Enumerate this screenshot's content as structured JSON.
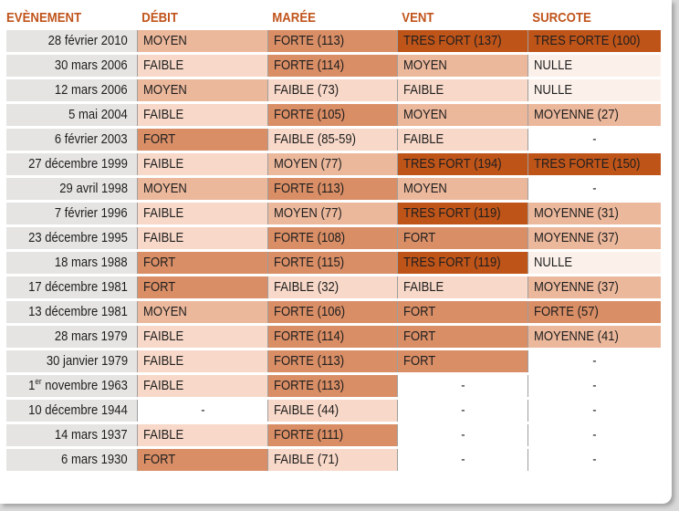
{
  "headers": [
    "EVÈNEMENT",
    "DÉBIT",
    "MARÉE",
    "VENT",
    "SURCOTE"
  ],
  "colors": {
    "header_text": "#c0541b",
    "event_bg": "#e5e4e2",
    "levels": {
      "none": "#ffffff",
      "nulle": "#fcf1ea",
      "faible": "#f8d8c8",
      "moyen": "#ecb89c",
      "forte": "#d98e66",
      "tres_fort": "#bf5419"
    }
  },
  "rows": [
    {
      "event": "28 février 2010",
      "debit": {
        "text": "MOYEN",
        "level": "moyen"
      },
      "maree": {
        "text": "FORTE (113)",
        "level": "forte"
      },
      "vent": {
        "text": "TRES FORT (137)",
        "level": "tres_fort"
      },
      "surcote": {
        "text": "TRES FORTE (100)",
        "level": "tres_fort"
      }
    },
    {
      "event": "30 mars 2006",
      "debit": {
        "text": "FAIBLE",
        "level": "faible"
      },
      "maree": {
        "text": "FORTE (114)",
        "level": "forte"
      },
      "vent": {
        "text": "MOYEN",
        "level": "moyen"
      },
      "surcote": {
        "text": "NULLE",
        "level": "nulle"
      }
    },
    {
      "event": "12 mars 2006",
      "debit": {
        "text": "MOYEN",
        "level": "moyen"
      },
      "maree": {
        "text": "FAIBLE (73)",
        "level": "faible"
      },
      "vent": {
        "text": "FAIBLE",
        "level": "faible"
      },
      "surcote": {
        "text": "NULLE",
        "level": "nulle"
      }
    },
    {
      "event": "5 mai 2004",
      "debit": {
        "text": "FAIBLE",
        "level": "faible"
      },
      "maree": {
        "text": "FORTE (105)",
        "level": "forte"
      },
      "vent": {
        "text": "MOYEN",
        "level": "moyen"
      },
      "surcote": {
        "text": "MOYENNE (27)",
        "level": "moyen"
      }
    },
    {
      "event": "6 février 2003",
      "debit": {
        "text": "FORT",
        "level": "forte"
      },
      "maree": {
        "text": "FAIBLE (85-59)",
        "level": "faible"
      },
      "vent": {
        "text": "FAIBLE",
        "level": "faible"
      },
      "surcote": {
        "text": "-",
        "level": "none"
      }
    },
    {
      "event": "27 décembre 1999",
      "debit": {
        "text": "FAIBLE",
        "level": "faible"
      },
      "maree": {
        "text": "MOYEN (77)",
        "level": "moyen"
      },
      "vent": {
        "text": "TRES FORT (194)",
        "level": "tres_fort"
      },
      "surcote": {
        "text": "TRES FORTE (150)",
        "level": "tres_fort"
      }
    },
    {
      "event": "29 avril 1998",
      "debit": {
        "text": "MOYEN",
        "level": "moyen"
      },
      "maree": {
        "text": "FORTE (113)",
        "level": "forte"
      },
      "vent": {
        "text": "MOYEN",
        "level": "moyen"
      },
      "surcote": {
        "text": "-",
        "level": "none"
      }
    },
    {
      "event": "7 février 1996",
      "debit": {
        "text": "FAIBLE",
        "level": "faible"
      },
      "maree": {
        "text": "MOYEN (77)",
        "level": "moyen"
      },
      "vent": {
        "text": "TRES FORT (119)",
        "level": "tres_fort"
      },
      "surcote": {
        "text": "MOYENNE (31)",
        "level": "moyen"
      }
    },
    {
      "event": "23 décembre 1995",
      "debit": {
        "text": "FAIBLE",
        "level": "faible"
      },
      "maree": {
        "text": "FORTE (108)",
        "level": "forte"
      },
      "vent": {
        "text": "FORT",
        "level": "forte"
      },
      "surcote": {
        "text": "MOYENNE (37)",
        "level": "moyen"
      }
    },
    {
      "event": "18 mars 1988",
      "debit": {
        "text": "FORT",
        "level": "forte"
      },
      "maree": {
        "text": "FORTE (115)",
        "level": "forte"
      },
      "vent": {
        "text": "TRES FORT (119)",
        "level": "tres_fort"
      },
      "surcote": {
        "text": "NULLE",
        "level": "nulle"
      }
    },
    {
      "event": "17 décembre 1981",
      "debit": {
        "text": "FORT",
        "level": "forte"
      },
      "maree": {
        "text": "FAIBLE (32)",
        "level": "faible"
      },
      "vent": {
        "text": "FAIBLE",
        "level": "faible"
      },
      "surcote": {
        "text": "MOYENNE (37)",
        "level": "moyen"
      }
    },
    {
      "event": "13 décembre 1981",
      "debit": {
        "text": "MOYEN",
        "level": "moyen"
      },
      "maree": {
        "text": "FORTE (106)",
        "level": "forte"
      },
      "vent": {
        "text": "FORT",
        "level": "forte"
      },
      "surcote": {
        "text": "FORTE (57)",
        "level": "forte"
      }
    },
    {
      "event": "28 mars 1979",
      "debit": {
        "text": "FAIBLE",
        "level": "faible"
      },
      "maree": {
        "text": "FORTE (114)",
        "level": "forte"
      },
      "vent": {
        "text": "FORT",
        "level": "forte"
      },
      "surcote": {
        "text": "MOYENNE (41)",
        "level": "moyen"
      }
    },
    {
      "event": "30 janvier 1979",
      "debit": {
        "text": "FAIBLE",
        "level": "faible"
      },
      "maree": {
        "text": "FORTE (113)",
        "level": "forte"
      },
      "vent": {
        "text": "FORT",
        "level": "forte"
      },
      "surcote": {
        "text": "-",
        "level": "none"
      }
    },
    {
      "event": "1er novembre 1963",
      "event_num": "1",
      "event_sup": "er",
      "event_rest": " novembre 1963",
      "debit": {
        "text": "FAIBLE",
        "level": "faible"
      },
      "maree": {
        "text": "FORTE (113)",
        "level": "forte"
      },
      "vent": {
        "text": "-",
        "level": "none"
      },
      "surcote": {
        "text": "-",
        "level": "none"
      }
    },
    {
      "event": "10 décembre 1944",
      "debit": {
        "text": "-",
        "level": "none"
      },
      "maree": {
        "text": "FAIBLE (44)",
        "level": "faible"
      },
      "vent": {
        "text": "-",
        "level": "none"
      },
      "surcote": {
        "text": "-",
        "level": "none"
      }
    },
    {
      "event": "14 mars 1937",
      "debit": {
        "text": "FAIBLE",
        "level": "faible"
      },
      "maree": {
        "text": "FORTE (111)",
        "level": "forte"
      },
      "vent": {
        "text": "-",
        "level": "none"
      },
      "surcote": {
        "text": "-",
        "level": "none"
      }
    },
    {
      "event": "6 mars 1930",
      "debit": {
        "text": "FORT",
        "level": "forte"
      },
      "maree": {
        "text": "FAIBLE (71)",
        "level": "faible"
      },
      "vent": {
        "text": "-",
        "level": "none"
      },
      "surcote": {
        "text": "-",
        "level": "none"
      }
    }
  ]
}
